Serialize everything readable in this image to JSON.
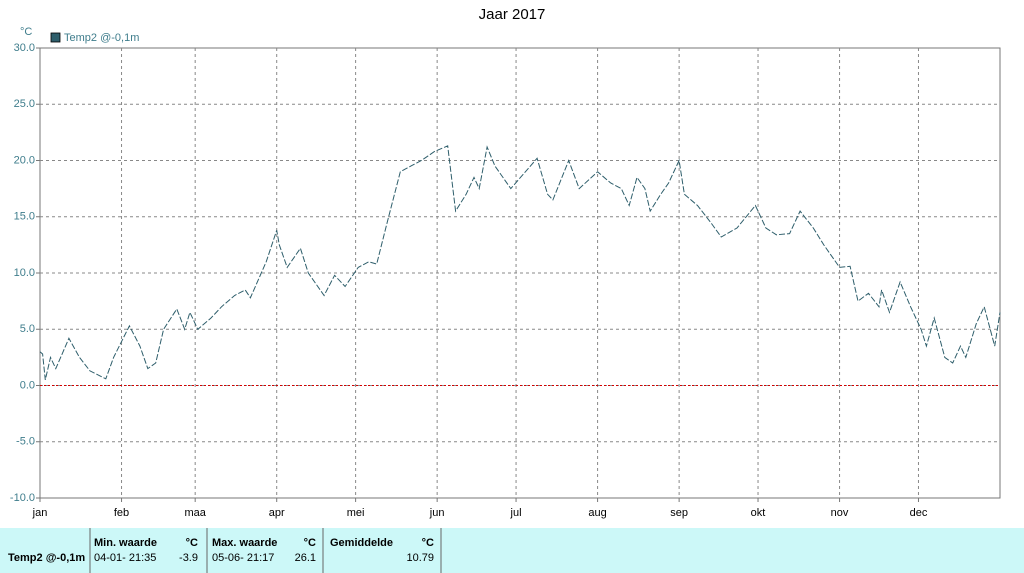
{
  "chart_data": {
    "type": "line",
    "title": "Jaar 2017",
    "y_unit": "°C",
    "x": [
      0,
      1,
      2,
      4,
      6,
      11,
      15,
      19,
      25,
      28,
      34,
      38,
      41,
      44,
      47,
      52,
      55,
      57,
      60,
      65,
      69,
      74,
      78,
      80,
      86,
      90,
      91,
      94,
      99,
      102,
      108,
      112,
      116,
      121,
      125,
      128,
      132,
      137,
      141,
      145,
      150,
      155,
      158,
      162,
      165,
      167,
      170,
      173,
      179,
      189,
      193,
      195,
      201,
      205,
      212,
      217,
      221,
      224,
      227,
      230,
      232,
      236,
      239,
      243,
      245,
      250,
      255,
      259,
      265,
      272,
      276,
      280,
      285,
      289,
      294,
      298,
      304,
      308,
      311,
      315,
      319,
      320,
      323,
      327,
      331,
      335,
      337,
      340,
      344,
      347,
      350,
      352,
      356,
      359,
      363,
      365
    ],
    "series": [
      {
        "name": "Temp2 @-0,1m",
        "color": "#2e5e6b",
        "values": [
          3.0,
          2.8,
          0.5,
          2.5,
          1.5,
          4.2,
          2.5,
          1.3,
          0.6,
          2.5,
          5.3,
          3.5,
          1.5,
          2.0,
          5.0,
          6.8,
          5.0,
          6.5,
          5.0,
          6.0,
          7.0,
          8.0,
          8.5,
          7.8,
          11.0,
          13.8,
          12.5,
          10.5,
          12.2,
          10.0,
          8.0,
          9.8,
          8.8,
          10.5,
          11.0,
          10.8,
          14.5,
          19.0,
          19.5,
          20.0,
          20.8,
          21.3,
          15.5,
          17.0,
          18.5,
          17.5,
          21.2,
          19.5,
          17.5,
          20.2,
          17.0,
          16.5,
          20.0,
          17.5,
          19.0,
          18.0,
          17.5,
          16.0,
          18.5,
          17.5,
          15.5,
          17.0,
          18.0,
          20.0,
          17.0,
          16.0,
          14.5,
          13.2,
          14.0,
          16.0,
          14.0,
          13.4,
          13.5,
          15.5,
          14.0,
          12.5,
          10.5,
          10.6,
          7.5,
          8.2,
          7.0,
          8.5,
          6.5,
          9.2,
          7.0,
          5.0,
          3.5,
          6.0,
          2.5,
          2.0,
          3.5,
          2.5,
          5.5,
          7.0,
          3.5,
          6.5
        ]
      }
    ],
    "xlim": [
      0,
      365
    ],
    "xticks": [
      {
        "value": 0,
        "label": "jan"
      },
      {
        "value": 31,
        "label": "feb"
      },
      {
        "value": 59,
        "label": "maa"
      },
      {
        "value": 90,
        "label": "apr"
      },
      {
        "value": 120,
        "label": "mei"
      },
      {
        "value": 151,
        "label": "jun"
      },
      {
        "value": 181,
        "label": "jul"
      },
      {
        "value": 212,
        "label": "aug"
      },
      {
        "value": 243,
        "label": "sep"
      },
      {
        "value": 273,
        "label": "okt"
      },
      {
        "value": 304,
        "label": "nov"
      },
      {
        "value": 334,
        "label": "dec"
      }
    ],
    "ylim": [
      -10,
      30
    ],
    "yticks": [
      {
        "value": -10,
        "label": "-10.0"
      },
      {
        "value": -5,
        "label": "-5.0"
      },
      {
        "value": 0,
        "label": "0.0"
      },
      {
        "value": 5,
        "label": "5.0"
      },
      {
        "value": 10,
        "label": "10.0"
      },
      {
        "value": 15,
        "label": "15.0"
      },
      {
        "value": 20,
        "label": "20.0"
      },
      {
        "value": 25,
        "label": "25.0"
      },
      {
        "value": 30,
        "label": "30.0"
      }
    ],
    "grid": true,
    "zero_line": {
      "value": 0,
      "color": "#d40000"
    }
  },
  "stats": {
    "series_name": "Temp2 @-0,1m",
    "min": {
      "header": "Min. waarde",
      "unit": "°C",
      "time": "04-01- 21:35",
      "value": -3.9
    },
    "max": {
      "header": "Max. waarde",
      "unit": "°C",
      "time": "05-06- 21:17",
      "value": 26.1
    },
    "avg": {
      "header": "Gemiddelde",
      "unit": "°C",
      "value": 10.79
    }
  }
}
